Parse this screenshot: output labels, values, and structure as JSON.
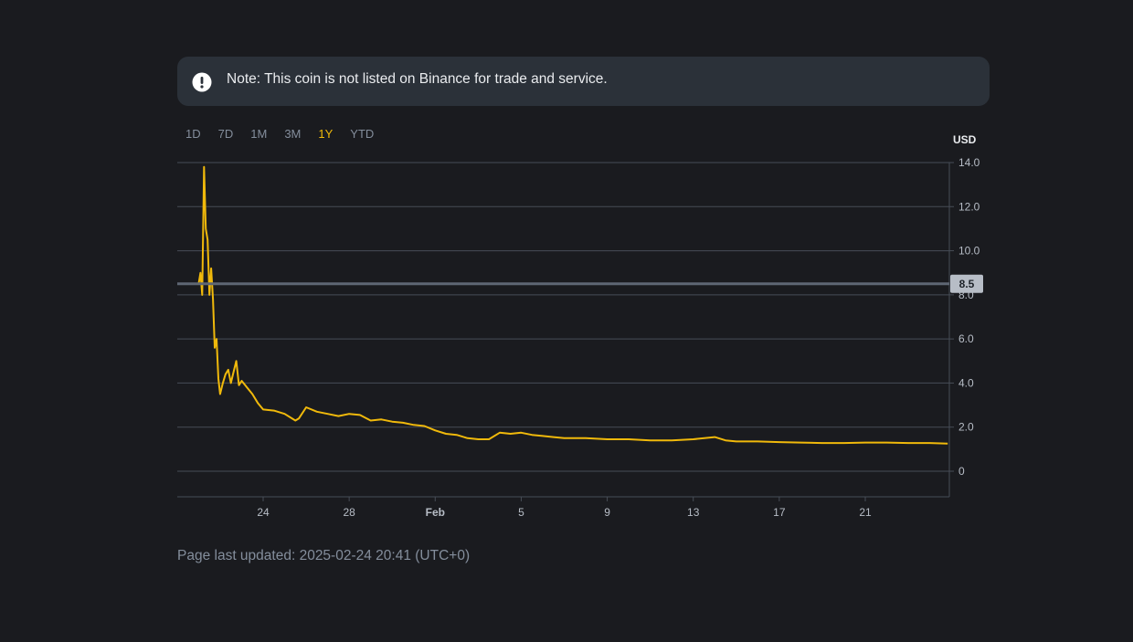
{
  "notice": {
    "icon": "exclamation-circle-icon",
    "text": "Note: This coin is not listed on Binance for trade and service."
  },
  "tabs": [
    {
      "label": "1D",
      "active": false
    },
    {
      "label": "7D",
      "active": false
    },
    {
      "label": "1M",
      "active": false
    },
    {
      "label": "3M",
      "active": false
    },
    {
      "label": "1Y",
      "active": true
    },
    {
      "label": "YTD",
      "active": false
    }
  ],
  "colors": {
    "background": "#1a1b1f",
    "line": "#f0b90b",
    "grid": "#474d57",
    "axis_text": "#b7bdc6",
    "current_price_line": "#5e6673",
    "current_price_badge": "#b7bdc6",
    "active_tab": "#f0b90b",
    "inactive_tab": "#848e9c"
  },
  "chart_data": {
    "type": "line",
    "y_unit": "USD",
    "ylim": [
      -1.2,
      14.0
    ],
    "y_ticks": [
      0,
      2.0,
      4.0,
      6.0,
      8.0,
      10.0,
      12.0,
      14.0
    ],
    "y_tick_labels": [
      "0",
      "2.0",
      "4.0",
      "6.0",
      "8.0",
      "10.0",
      "12.0",
      "14.0"
    ],
    "xlim": [
      "2025-01-21",
      "2025-02-24"
    ],
    "x_ticks": [
      "2025-01-24",
      "2025-01-28",
      "2025-02-01",
      "2025-02-05",
      "2025-02-09",
      "2025-02-13",
      "2025-02-17",
      "2025-02-21"
    ],
    "x_tick_labels": [
      "24",
      "28",
      "Feb",
      "5",
      "9",
      "13",
      "17",
      "21"
    ],
    "grid": true,
    "current_price": 8.5,
    "current_price_label": "8.5",
    "series": [
      {
        "x": [
          "2025-01-21 00:00",
          "2025-01-21 02:00",
          "2025-01-21 04:00",
          "2025-01-21 06:00",
          "2025-01-21 08:00",
          "2025-01-21 10:00",
          "2025-01-21 12:00",
          "2025-01-21 14:00",
          "2025-01-21 16:00",
          "2025-01-21 18:00",
          "2025-01-21 20:00",
          "2025-01-21 22:00",
          "2025-01-22 00:00",
          "2025-01-22 03:00",
          "2025-01-22 06:00",
          "2025-01-22 09:00",
          "2025-01-22 12:00",
          "2025-01-22 15:00",
          "2025-01-22 18:00",
          "2025-01-22 21:00",
          "2025-01-23 00:00",
          "2025-01-23 06:00",
          "2025-01-23 12:00",
          "2025-01-23 18:00",
          "2025-01-24 00:00",
          "2025-01-24 12:00",
          "2025-01-25 00:00",
          "2025-01-25 12:00",
          "2025-01-25 16:00",
          "2025-01-26 00:00",
          "2025-01-26 12:00",
          "2025-01-27 00:00",
          "2025-01-27 12:00",
          "2025-01-28 00:00",
          "2025-01-28 12:00",
          "2025-01-29 00:00",
          "2025-01-29 12:00",
          "2025-01-30 00:00",
          "2025-01-30 12:00",
          "2025-01-31 00:00",
          "2025-01-31 12:00",
          "2025-02-01 00:00",
          "2025-02-01 12:00",
          "2025-02-02 00:00",
          "2025-02-02 12:00",
          "2025-02-03 00:00",
          "2025-02-03 12:00",
          "2025-02-04 00:00",
          "2025-02-04 12:00",
          "2025-02-05 00:00",
          "2025-02-05 12:00",
          "2025-02-06 00:00",
          "2025-02-06 12:00",
          "2025-02-07 00:00",
          "2025-02-08 00:00",
          "2025-02-09 00:00",
          "2025-02-10 00:00",
          "2025-02-11 00:00",
          "2025-02-12 00:00",
          "2025-02-13 00:00",
          "2025-02-14 00:00",
          "2025-02-14 12:00",
          "2025-02-15 00:00",
          "2025-02-16 00:00",
          "2025-02-17 00:00",
          "2025-02-18 00:00",
          "2025-02-19 00:00",
          "2025-02-20 00:00",
          "2025-02-21 00:00",
          "2025-02-22 00:00",
          "2025-02-23 00:00",
          "2025-02-24 00:00",
          "2025-02-24 20:00"
        ],
        "y": [
          8.5,
          9.0,
          8.0,
          13.8,
          11.0,
          10.5,
          8.0,
          9.2,
          7.8,
          5.6,
          6.0,
          4.2,
          3.5,
          4.0,
          4.4,
          4.6,
          4.0,
          4.5,
          5.0,
          3.9,
          4.1,
          3.8,
          3.5,
          3.1,
          2.8,
          2.75,
          2.6,
          2.3,
          2.4,
          2.9,
          2.7,
          2.6,
          2.5,
          2.6,
          2.55,
          2.3,
          2.35,
          2.25,
          2.2,
          2.1,
          2.05,
          1.85,
          1.7,
          1.65,
          1.5,
          1.45,
          1.45,
          1.75,
          1.7,
          1.75,
          1.65,
          1.6,
          1.55,
          1.5,
          1.5,
          1.45,
          1.45,
          1.4,
          1.4,
          1.45,
          1.55,
          1.4,
          1.35,
          1.35,
          1.32,
          1.3,
          1.28,
          1.28,
          1.3,
          1.3,
          1.28,
          1.28,
          1.25
        ]
      }
    ]
  },
  "footer": {
    "text": "Page last updated: 2025-02-24 20:41 (UTC+0)"
  }
}
